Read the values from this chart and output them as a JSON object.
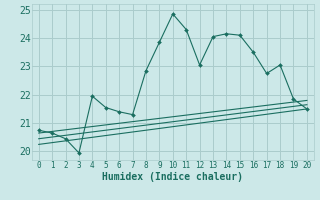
{
  "xlabel": "Humidex (Indice chaleur)",
  "ylabel": "",
  "xlim": [
    -0.5,
    20.5
  ],
  "ylim": [
    19.7,
    25.2
  ],
  "yticks": [
    20,
    21,
    22,
    23,
    24,
    25
  ],
  "xticks": [
    0,
    1,
    2,
    3,
    4,
    5,
    6,
    7,
    8,
    9,
    10,
    11,
    12,
    13,
    14,
    15,
    16,
    17,
    18,
    19,
    20
  ],
  "bg_color": "#cce8e8",
  "grid_color": "#aacccc",
  "line_color": "#1a6e60",
  "main_line": {
    "x": [
      0,
      1,
      2,
      3,
      4,
      5,
      6,
      7,
      8,
      9,
      10,
      11,
      12,
      13,
      14,
      15,
      16,
      17,
      18,
      19,
      20
    ],
    "y": [
      20.75,
      20.65,
      20.45,
      19.95,
      21.95,
      21.55,
      21.4,
      21.3,
      22.85,
      23.85,
      24.85,
      24.3,
      23.05,
      24.05,
      24.15,
      24.1,
      23.5,
      22.75,
      23.05,
      21.85,
      21.5
    ]
  },
  "reg_lines": [
    {
      "x": [
        0,
        20
      ],
      "y": [
        20.25,
        21.5
      ]
    },
    {
      "x": [
        0,
        20
      ],
      "y": [
        20.45,
        21.65
      ]
    },
    {
      "x": [
        0,
        20
      ],
      "y": [
        20.65,
        21.8
      ]
    }
  ]
}
